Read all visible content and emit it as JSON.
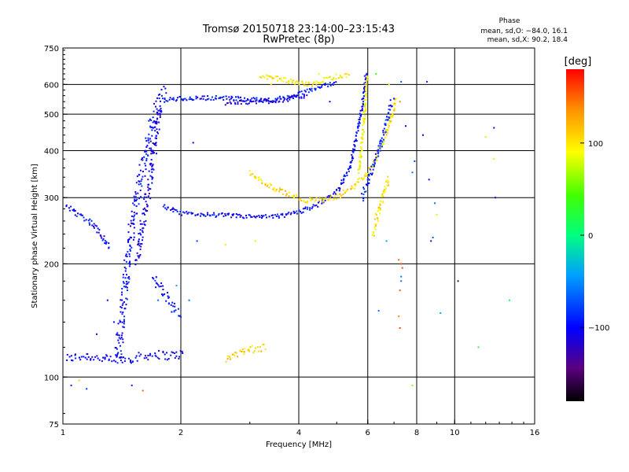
{
  "header": {
    "title_line1": "Tromsø 20150718 23:14:00–23:15:43",
    "title_line2": "RwPretec (8p)",
    "phase_title": "Phase",
    "phase_o": "mean, sd,O: −84.0, 16.1",
    "phase_x": "mean, sd,X: 90.2, 18.4"
  },
  "colorbar": {
    "unit": "[deg]",
    "min": -180,
    "max": 180,
    "ticks": [
      {
        "value": 100,
        "label": "100"
      },
      {
        "value": 0,
        "label": "0"
      },
      {
        "value": -100,
        "label": "−100"
      }
    ]
  },
  "chart_data": {
    "type": "scatter",
    "title": "Tromsø 20150718 23:14:00–23:15:43",
    "subtitle": "RwPretec (8p)",
    "xlabel": "Frequency [MHz]",
    "ylabel": "Stationary phase Virtual Height [km]",
    "xscale": "log",
    "yscale": "log",
    "xlim": [
      1,
      16
    ],
    "ylim": [
      75,
      750
    ],
    "grid": true,
    "xticks": [
      1,
      2,
      4,
      6,
      8,
      10,
      16
    ],
    "yticks": [
      75,
      100,
      200,
      300,
      400,
      500,
      600,
      750
    ],
    "xgrid": [
      2,
      4,
      6,
      8,
      10
    ],
    "ygrid": [
      100,
      200,
      300,
      400,
      500,
      600
    ],
    "color_value": "phase (deg)",
    "traces": [
      {
        "segments": [
          [
            [
              1.02,
              112
            ],
            [
              1.15,
              114
            ],
            [
              1.3,
              111
            ],
            [
              1.5,
              112
            ],
            [
              1.7,
              115
            ],
            [
              1.85,
              114
            ],
            [
              2.05,
              115
            ]
          ]
        ],
        "phase": -105,
        "spread": 0.025
      },
      {
        "segments": [
          [
            [
              1.02,
              285
            ],
            [
              1.1,
              270
            ],
            [
              1.2,
              255
            ],
            [
              1.32,
              220
            ]
          ]
        ],
        "phase": -100,
        "spread": 0.015
      },
      {
        "segments": [
          [
            [
              1.38,
              110
            ],
            [
              1.42,
              150
            ],
            [
              1.46,
              200
            ],
            [
              1.5,
              250
            ],
            [
              1.55,
              300
            ],
            [
              1.6,
              360
            ],
            [
              1.65,
              420
            ],
            [
              1.7,
              480
            ],
            [
              1.75,
              540
            ],
            [
              1.82,
              580
            ]
          ]
        ],
        "phase": -100,
        "spread": 0.04
      },
      {
        "segments": [
          [
            [
              1.55,
              200
            ],
            [
              1.6,
              260
            ],
            [
              1.67,
              330
            ],
            [
              1.72,
              430
            ],
            [
              1.78,
              520
            ]
          ]
        ],
        "phase": -110,
        "spread": 0.03
      },
      {
        "segments": [
          [
            [
              1.8,
              545
            ],
            [
              2.0,
              550
            ],
            [
              2.4,
              553
            ],
            [
              2.8,
              550
            ],
            [
              3.2,
              545
            ],
            [
              3.6,
              550
            ],
            [
              4.0,
              565
            ],
            [
              4.5,
              590
            ],
            [
              5.0,
              610
            ]
          ]
        ],
        "phase": -95,
        "spread": 0.012
      },
      {
        "segments": [
          [
            [
              2.6,
              535
            ],
            [
              3.0,
              538
            ],
            [
              3.4,
              542
            ],
            [
              3.8,
              548
            ],
            [
              4.2,
              562
            ]
          ]
        ],
        "phase": -110,
        "spread": 0.012
      },
      {
        "segments": [
          [
            [
              3.2,
              630
            ],
            [
              3.6,
              620
            ],
            [
              4.0,
              605
            ],
            [
              4.4,
              600
            ],
            [
              4.7,
              620
            ],
            [
              5.0,
              630
            ],
            [
              5.4,
              635
            ]
          ]
        ],
        "phase": 95,
        "spread": 0.012
      },
      {
        "segments": [
          [
            [
              1.8,
              285
            ],
            [
              2.0,
              272
            ],
            [
              2.4,
              270
            ],
            [
              2.8,
              268
            ],
            [
              3.2,
              266
            ],
            [
              3.6,
              268
            ],
            [
              4.0,
              275
            ],
            [
              4.5,
              288
            ],
            [
              5.0,
              310
            ],
            [
              5.4,
              360
            ],
            [
              5.6,
              430
            ],
            [
              5.8,
              520
            ],
            [
              5.9,
              600
            ],
            [
              5.95,
              650
            ]
          ]
        ],
        "phase": -100,
        "spread": 0.012
      },
      {
        "segments": [
          [
            [
              3.0,
              350
            ],
            [
              3.4,
              320
            ],
            [
              3.8,
              305
            ],
            [
              4.2,
              295
            ],
            [
              4.6,
              295
            ],
            [
              5.0,
              300
            ],
            [
              5.5,
              320
            ],
            [
              6.0,
              350
            ],
            [
              6.3,
              380
            ],
            [
              6.6,
              430
            ],
            [
              6.9,
              490
            ],
            [
              7.1,
              550
            ]
          ]
        ],
        "phase": 105,
        "spread": 0.015
      },
      {
        "segments": [
          [
            [
              5.8,
              300
            ],
            [
              6.0,
              330
            ],
            [
              6.3,
              380
            ],
            [
              6.6,
              450
            ],
            [
              6.9,
              540
            ]
          ]
        ],
        "phase": -90,
        "spread": 0.02
      },
      {
        "segments": [
          [
            [
              5.7,
              350
            ],
            [
              5.8,
              420
            ],
            [
              5.9,
              520
            ],
            [
              5.95,
              600
            ],
            [
              6.0,
              640
            ]
          ]
        ],
        "phase": 95,
        "spread": 0.012
      },
      {
        "segments": [
          [
            [
              6.2,
              240
            ],
            [
              6.4,
              280
            ],
            [
              6.6,
              310
            ],
            [
              6.8,
              340
            ]
          ]
        ],
        "phase": 100,
        "spread": 0.02
      },
      {
        "segments": [
          [
            [
              2.6,
              112
            ],
            [
              3.0,
              118
            ],
            [
              3.3,
              120
            ]
          ]
        ],
        "phase": 110,
        "spread": 0.02
      },
      {
        "segments": [
          [
            [
              1.7,
              185
            ],
            [
              1.8,
              170
            ],
            [
              1.9,
              155
            ],
            [
              2.0,
              145
            ]
          ]
        ],
        "phase": -95,
        "spread": 0.025
      }
    ],
    "scatter": [
      [
        1.05,
        95,
        -90
      ],
      [
        1.1,
        98,
        110
      ],
      [
        1.15,
        93,
        -80
      ],
      [
        1.22,
        130,
        -120
      ],
      [
        1.3,
        160,
        -100
      ],
      [
        1.35,
        140,
        -100
      ],
      [
        1.5,
        95,
        -90
      ],
      [
        1.6,
        92,
        150
      ],
      [
        1.75,
        160,
        -60
      ],
      [
        1.95,
        175,
        -40
      ],
      [
        2.1,
        160,
        -60
      ],
      [
        2.15,
        420,
        -100
      ],
      [
        2.2,
        230,
        -80
      ],
      [
        2.6,
        225,
        100
      ],
      [
        2.9,
        115,
        100
      ],
      [
        3.1,
        230,
        80
      ],
      [
        3.4,
        600,
        90
      ],
      [
        4.5,
        640,
        95
      ],
      [
        4.8,
        540,
        -110
      ],
      [
        6.3,
        640,
        40
      ],
      [
        6.4,
        150,
        -60
      ],
      [
        6.7,
        230,
        -40
      ],
      [
        6.8,
        600,
        90
      ],
      [
        7.0,
        550,
        -100
      ],
      [
        7.2,
        145,
        140
      ],
      [
        7.2,
        205,
        150
      ],
      [
        7.3,
        180,
        -60
      ],
      [
        7.3,
        610,
        -70
      ],
      [
        7.5,
        465,
        -100
      ],
      [
        7.8,
        95,
        60
      ],
      [
        7.9,
        375,
        -80
      ],
      [
        8.3,
        440,
        -100
      ],
      [
        8.5,
        610,
        -90
      ],
      [
        8.6,
        335,
        -100
      ],
      [
        8.7,
        230,
        -130
      ],
      [
        8.9,
        290,
        -60
      ],
      [
        9.0,
        270,
        100
      ],
      [
        9.2,
        148,
        -40
      ],
      [
        10.2,
        180,
        -150
      ],
      [
        11.5,
        120,
        20
      ],
      [
        12.0,
        435,
        100
      ],
      [
        12.6,
        460,
        -110
      ],
      [
        12.6,
        380,
        100
      ],
      [
        12.7,
        300,
        -100
      ],
      [
        13.8,
        160,
        10
      ],
      [
        7.25,
        540,
        140
      ],
      [
        7.25,
        170,
        150
      ],
      [
        7.3,
        200,
        160
      ],
      [
        7.35,
        195,
        160
      ],
      [
        7.8,
        350,
        -60
      ],
      [
        8.8,
        235,
        -70
      ],
      [
        7.25,
        135,
        160
      ],
      [
        7.3,
        185,
        -60
      ]
    ]
  }
}
